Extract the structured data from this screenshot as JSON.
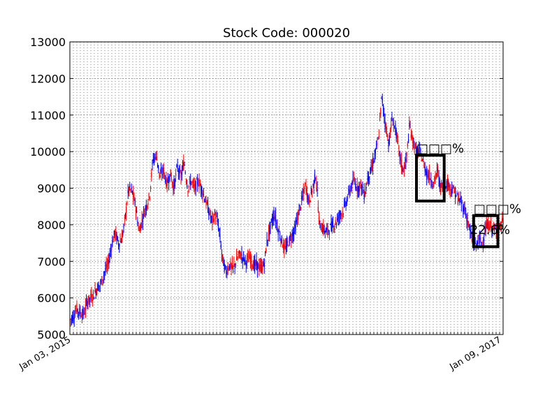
{
  "chart_data": {
    "type": "candlestick",
    "title": "Stock Code: 000020",
    "xlabel": "",
    "ylabel": "",
    "ylim": [
      5000,
      13000
    ],
    "yticks": [
      5000,
      6000,
      7000,
      8000,
      9000,
      10000,
      11000,
      12000,
      13000
    ],
    "grid": true,
    "colors": {
      "up": "#ff0000",
      "down": "#0000ff",
      "box": "#000000"
    },
    "x_first_label": "Jan 03, 2015",
    "x_last_label": "Jan 09, 2017",
    "points": [
      [
        0,
        5400
      ],
      [
        2,
        5500
      ],
      [
        4,
        5700
      ],
      [
        6,
        5600
      ],
      [
        8,
        5550
      ],
      [
        10,
        5900
      ],
      [
        12,
        6000
      ],
      [
        14,
        6100
      ],
      [
        16,
        6300
      ],
      [
        18,
        6400
      ],
      [
        20,
        6700
      ],
      [
        22,
        6900
      ],
      [
        24,
        7400
      ],
      [
        26,
        7800
      ],
      [
        28,
        7500
      ],
      [
        30,
        7600
      ],
      [
        32,
        8200
      ],
      [
        34,
        9000
      ],
      [
        36,
        8900
      ],
      [
        38,
        8500
      ],
      [
        40,
        7800
      ],
      [
        42,
        8200
      ],
      [
        44,
        8500
      ],
      [
        46,
        8800
      ],
      [
        48,
        9800
      ],
      [
        50,
        9900
      ],
      [
        52,
        9300
      ],
      [
        54,
        9500
      ],
      [
        56,
        9100
      ],
      [
        58,
        9400
      ],
      [
        60,
        9000
      ],
      [
        62,
        9600
      ],
      [
        64,
        9300
      ],
      [
        66,
        9700
      ],
      [
        68,
        9000
      ],
      [
        70,
        9200
      ],
      [
        72,
        9000
      ],
      [
        74,
        9200
      ],
      [
        76,
        9000
      ],
      [
        78,
        8700
      ],
      [
        80,
        8400
      ],
      [
        82,
        8100
      ],
      [
        84,
        8300
      ],
      [
        86,
        7900
      ],
      [
        88,
        7100
      ],
      [
        90,
        6700
      ],
      [
        92,
        6900
      ],
      [
        94,
        6800
      ],
      [
        96,
        7000
      ],
      [
        98,
        7200
      ],
      [
        100,
        7100
      ],
      [
        102,
        7000
      ],
      [
        104,
        7100
      ],
      [
        106,
        6900
      ],
      [
        108,
        6900
      ],
      [
        110,
        6800
      ],
      [
        112,
        6900
      ],
      [
        114,
        7600
      ],
      [
        116,
        8000
      ],
      [
        118,
        8300
      ],
      [
        120,
        7900
      ],
      [
        122,
        7600
      ],
      [
        124,
        7300
      ],
      [
        126,
        7500
      ],
      [
        128,
        7700
      ],
      [
        130,
        7900
      ],
      [
        132,
        8300
      ],
      [
        134,
        8700
      ],
      [
        136,
        9100
      ],
      [
        138,
        8600
      ],
      [
        140,
        9000
      ],
      [
        142,
        9400
      ],
      [
        144,
        8000
      ],
      [
        146,
        7900
      ],
      [
        148,
        7800
      ],
      [
        150,
        7900
      ],
      [
        152,
        8000
      ],
      [
        154,
        8100
      ],
      [
        156,
        8300
      ],
      [
        158,
        8400
      ],
      [
        160,
        8700
      ],
      [
        162,
        9000
      ],
      [
        164,
        9200
      ],
      [
        166,
        9000
      ],
      [
        168,
        9100
      ],
      [
        170,
        8800
      ],
      [
        172,
        9300
      ],
      [
        174,
        9500
      ],
      [
        176,
        9900
      ],
      [
        178,
        10300
      ],
      [
        180,
        11500
      ],
      [
        182,
        10800
      ],
      [
        184,
        10200
      ],
      [
        186,
        10900
      ],
      [
        188,
        10600
      ],
      [
        190,
        10000
      ],
      [
        192,
        9500
      ],
      [
        194,
        9700
      ],
      [
        196,
        10700
      ],
      [
        198,
        10300
      ],
      [
        200,
        10000
      ],
      [
        202,
        10000
      ],
      [
        204,
        9700
      ],
      [
        206,
        9400
      ],
      [
        208,
        9300
      ],
      [
        210,
        9100
      ],
      [
        212,
        9500
      ],
      [
        214,
        9000
      ],
      [
        216,
        9200
      ],
      [
        218,
        9100
      ],
      [
        220,
        9000
      ],
      [
        222,
        8900
      ],
      [
        224,
        8700
      ],
      [
        226,
        8600
      ],
      [
        228,
        8400
      ],
      [
        230,
        8000
      ],
      [
        232,
        7600
      ],
      [
        234,
        7400
      ],
      [
        236,
        7600
      ],
      [
        238,
        7500
      ],
      [
        240,
        7900
      ],
      [
        242,
        8000
      ],
      [
        244,
        7900
      ],
      [
        246,
        7800
      ],
      [
        248,
        7900
      ],
      [
        250,
        8100
      ]
    ],
    "annotations": [
      {
        "label": "□□□%",
        "x0": 200,
        "x1": 216,
        "y0": 9900,
        "y1": 8650
      },
      {
        "label": "□□□%",
        "sublabel": "22.6%",
        "x0": 233,
        "x1": 247,
        "y0": 8250,
        "y1": 7400
      }
    ]
  }
}
